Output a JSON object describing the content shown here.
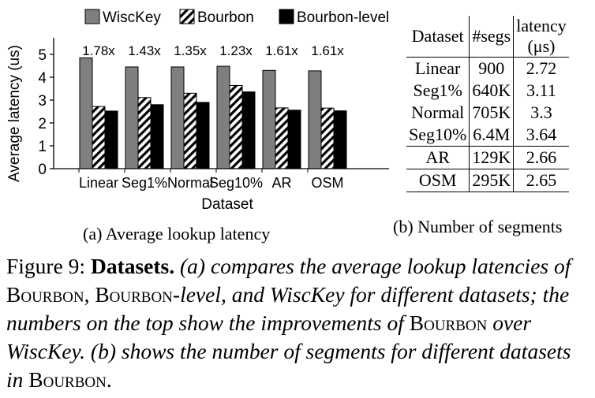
{
  "chart_data": {
    "type": "bar",
    "categories": [
      "Linear",
      "Seg1%",
      "Normal",
      "Seg10%",
      "AR",
      "OSM"
    ],
    "series": [
      {
        "name": "WiscKey",
        "values": [
          4.85,
          4.45,
          4.45,
          4.48,
          4.3,
          4.28
        ],
        "color": "#7f7f7f"
      },
      {
        "name": "Bourbon",
        "values": [
          2.72,
          3.11,
          3.3,
          3.64,
          2.66,
          2.65
        ],
        "pattern": "hatch"
      },
      {
        "name": "Bourbon-level",
        "values": [
          2.52,
          2.8,
          2.9,
          3.36,
          2.56,
          2.53
        ],
        "color": "#000000"
      }
    ],
    "improvements": [
      "1.78x",
      "1.43x",
      "1.35x",
      "1.23x",
      "1.61x",
      "1.61x"
    ],
    "ylabel": "Average latency (us)",
    "xlabel": "Dataset",
    "ylim": [
      0,
      5
    ],
    "yticks": [
      "0",
      "1",
      "2",
      "3",
      "4",
      "5"
    ],
    "legend_position": "top",
    "grid": false
  },
  "caption_a": "(a) Average lookup latency",
  "caption_b": "(b) Number of segments",
  "segments_table": {
    "headers": [
      "Dataset",
      "#segs",
      "latency",
      "(μs)"
    ],
    "rows": [
      {
        "dataset": "Linear",
        "segs": "900",
        "latency": "2.72"
      },
      {
        "dataset": "Seg1%",
        "segs": "640K",
        "latency": "3.11"
      },
      {
        "dataset": "Normal",
        "segs": "705K",
        "latency": "3.3"
      },
      {
        "dataset": "Seg10%",
        "segs": "6.4M",
        "latency": "3.64"
      },
      {
        "dataset": "AR",
        "segs": "129K",
        "latency": "2.66"
      },
      {
        "dataset": "OSM",
        "segs": "295K",
        "latency": "2.65"
      }
    ]
  },
  "figure_caption": {
    "label": "Figure 9:",
    "title": "Datasets.",
    "p1": "(a) compares the average lookup latencies of",
    "bourbon": "Bourbon",
    "comma": ",",
    "p2": "-level, and WiscKey for different datasets; the numbers on the top show the improvements of",
    "p3": "over WiscKey. (b) shows the number of segments for different datasets in",
    "end": "."
  }
}
